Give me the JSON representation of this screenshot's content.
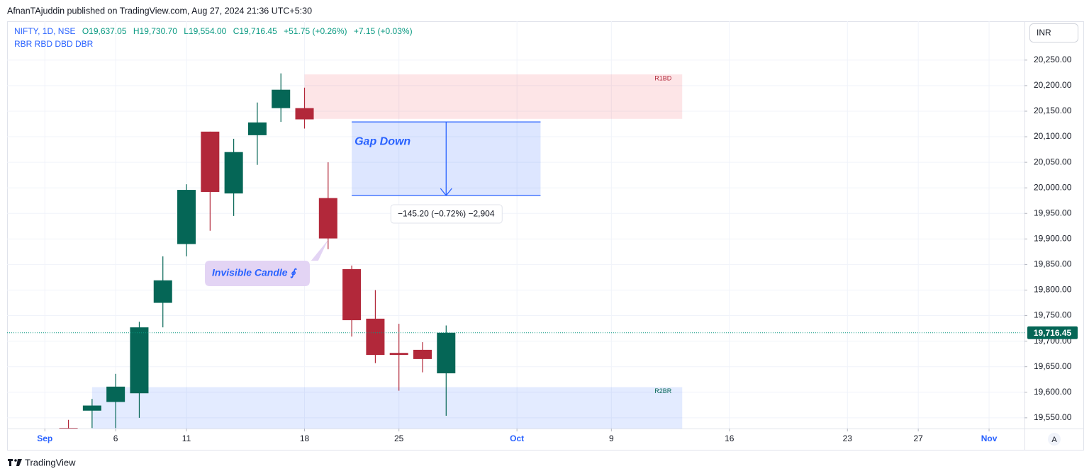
{
  "header": {
    "text": "AfnanTAjuddin published on TradingView.com, Aug 27, 2024 21:36 UTC+5:30"
  },
  "footer": {
    "brand": "TradingView"
  },
  "currency": "INR",
  "scale_button": "A",
  "legend": {
    "symbol": "NIFTY, 1D, NSE",
    "open": "O19,637.05",
    "high": "H19,730.70",
    "low": "L19,554.00",
    "close": "C19,716.45",
    "change": "+51.75 (+0.26%)",
    "change2": "+7.15 (+0.03%)",
    "indicator": "RBR RBD DBD DBR"
  },
  "chart_data": {
    "type": "candlestick",
    "x": [
      1,
      2,
      3,
      4,
      5,
      6,
      7,
      8,
      9,
      10,
      11,
      12,
      13,
      14,
      15,
      16,
      17
    ],
    "open": [
      19530,
      19564,
      19581,
      19598,
      19775,
      19890,
      20110,
      19989,
      20103,
      20156,
      20156,
      19980,
      19841,
      19744,
      19677,
      19683,
      19637.05
    ],
    "high": [
      19546,
      19587,
      19636,
      19738,
      19866,
      20007,
      20110,
      20096,
      20167,
      20224,
      20196,
      20050,
      19848,
      19800,
      19734,
      19698,
      19730.7
    ],
    "low": [
      19500,
      19530,
      19530,
      19550,
      19727,
      19866,
      19916,
      19945,
      20045,
      20129,
      20116,
      19880,
      19709,
      19657,
      19603,
      19639,
      19554.0
    ],
    "close": [
      19525,
      19574,
      19611,
      19727,
      19819,
      19996,
      19992,
      20070,
      20128,
      20192,
      20134,
      19901,
      19741,
      19673,
      19673,
      19665,
      19716.45
    ],
    "up_color": "#056656",
    "down_color": "#b2283a",
    "xlim": [
      -1.6,
      41.5
    ],
    "xticks": [
      {
        "value": 0,
        "label": "Sep"
      },
      {
        "value": 3,
        "label": "6"
      },
      {
        "value": 6,
        "label": "11"
      },
      {
        "value": 11,
        "label": "18"
      },
      {
        "value": 15,
        "label": "25"
      },
      {
        "value": 20,
        "label": "Oct"
      },
      {
        "value": 24,
        "label": "9"
      },
      {
        "value": 29,
        "label": "16"
      },
      {
        "value": 34,
        "label": "23"
      },
      {
        "value": 37,
        "label": "27"
      },
      {
        "value": 40,
        "label": "Nov"
      }
    ],
    "ylim": [
      19529,
      20326
    ],
    "yticks": [
      {
        "value": 19550,
        "label": "19,550.00"
      },
      {
        "value": 19600,
        "label": "19,600.00"
      },
      {
        "value": 19650,
        "label": "19,650.00"
      },
      {
        "value": 19700,
        "label": "19,700.00"
      },
      {
        "value": 19750,
        "label": "19,750.00"
      },
      {
        "value": 19800,
        "label": "19,800.00"
      },
      {
        "value": 19850,
        "label": "19,850.00"
      },
      {
        "value": 19900,
        "label": "19,900.00"
      },
      {
        "value": 19950,
        "label": "19,950.00"
      },
      {
        "value": 20000,
        "label": "20,000.00"
      },
      {
        "value": 20050,
        "label": "20,050.00"
      },
      {
        "value": 20100,
        "label": "20,100.00"
      },
      {
        "value": 20150,
        "label": "20,150.00"
      },
      {
        "value": 20200,
        "label": "20,200.00"
      },
      {
        "value": 20250,
        "label": "20,250.00"
      }
    ],
    "grid": true,
    "last_price": {
      "value": 19716.45,
      "label": "19,716.45"
    },
    "zones": [
      {
        "label": "R1BD",
        "x": [
          11,
          27
        ],
        "y": [
          20222,
          20135
        ],
        "color": "#f23645"
      },
      {
        "label": "R2BR",
        "x": [
          2,
          27
        ],
        "y": [
          19610,
          19529
        ],
        "color": "#2962ff"
      }
    ],
    "gap": {
      "label": "Gap Down",
      "x": [
        13,
        21
      ],
      "y": [
        20129,
        19985
      ],
      "measure": "−145.20 (−0.72%) −2,904"
    },
    "callout": {
      "label": "Invisible Candle ∮",
      "x": 12,
      "y": 19901
    }
  }
}
